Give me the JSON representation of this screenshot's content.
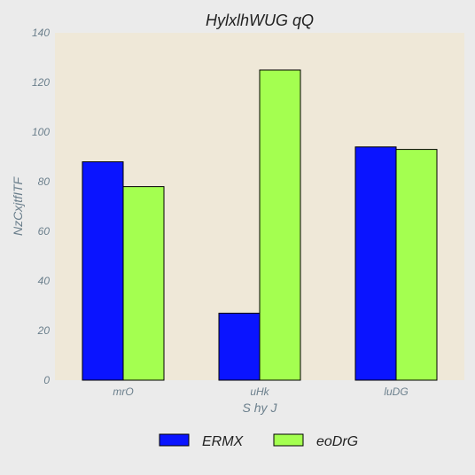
{
  "chart_data": {
    "type": "bar",
    "title": "HylxlhWUG qQ",
    "xlabel": "S hy J",
    "ylabel": "NzCxjtfITF",
    "categories": [
      "mrO",
      "uHk",
      "luDG"
    ],
    "series": [
      {
        "name": "ERMX",
        "color": "#0a14ff",
        "values": [
          88,
          27,
          94
        ]
      },
      {
        "name": "eoDrG",
        "color": "#a4ff50",
        "values": [
          78,
          125,
          93
        ]
      }
    ],
    "ylim": [
      0,
      140
    ],
    "yticks": [
      0,
      20,
      40,
      60,
      80,
      100,
      120,
      140
    ],
    "grid": false,
    "legend_position": "bottom-center",
    "plot_background": "#efe8d8",
    "figure_background": "#ebebeb"
  }
}
